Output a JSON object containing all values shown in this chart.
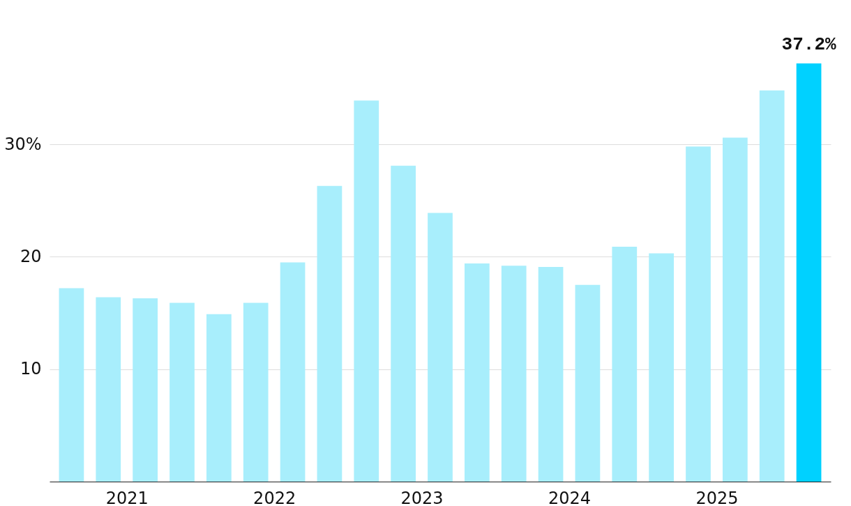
{
  "chart_data": {
    "type": "bar",
    "x": [
      2021.125,
      2021.375,
      2021.625,
      2021.875,
      2022.125,
      2022.375,
      2022.625,
      2022.875,
      2023.125,
      2023.375,
      2023.625,
      2023.875,
      2024.125,
      2024.375,
      2024.625,
      2024.875,
      2025.125,
      2025.375,
      2025.625,
      2025.875,
      2026.125
    ],
    "values": [
      17.2,
      16.4,
      16.3,
      15.9,
      14.9,
      15.9,
      19.5,
      26.3,
      33.9,
      28.1,
      23.9,
      19.4,
      19.2,
      19.1,
      17.5,
      20.9,
      20.3,
      29.8,
      30.6,
      34.8,
      37.2
    ],
    "colors": [
      "#a8eefc",
      "#a8eefc",
      "#a8eefc",
      "#a8eefc",
      "#a8eefc",
      "#a8eefc",
      "#a8eefc",
      "#a8eefc",
      "#a8eefc",
      "#a8eefc",
      "#a8eefc",
      "#a8eefc",
      "#a8eefc",
      "#a8eefc",
      "#a8eefc",
      "#a8eefc",
      "#a8eefc",
      "#a8eefc",
      "#a8eefc",
      "#a8eefc",
      "#00d1ff"
    ],
    "value_labels": [
      null,
      null,
      null,
      null,
      null,
      null,
      null,
      null,
      null,
      null,
      null,
      null,
      null,
      null,
      null,
      null,
      null,
      null,
      null,
      null,
      "37.2%"
    ],
    "xlim": [
      2021,
      2026.25
    ],
    "xticks": [
      {
        "value": 2021.5,
        "label": "2021"
      },
      {
        "value": 2022.5,
        "label": "2022"
      },
      {
        "value": 2023.5,
        "label": "2023"
      },
      {
        "value": 2024.5,
        "label": "2024"
      },
      {
        "value": 2025.5,
        "label": "2025"
      }
    ],
    "ylim": [
      0,
      37.2
    ],
    "yticks": [
      10,
      20,
      {
        "value": 30,
        "label": "30%"
      }
    ],
    "grid": "y"
  }
}
